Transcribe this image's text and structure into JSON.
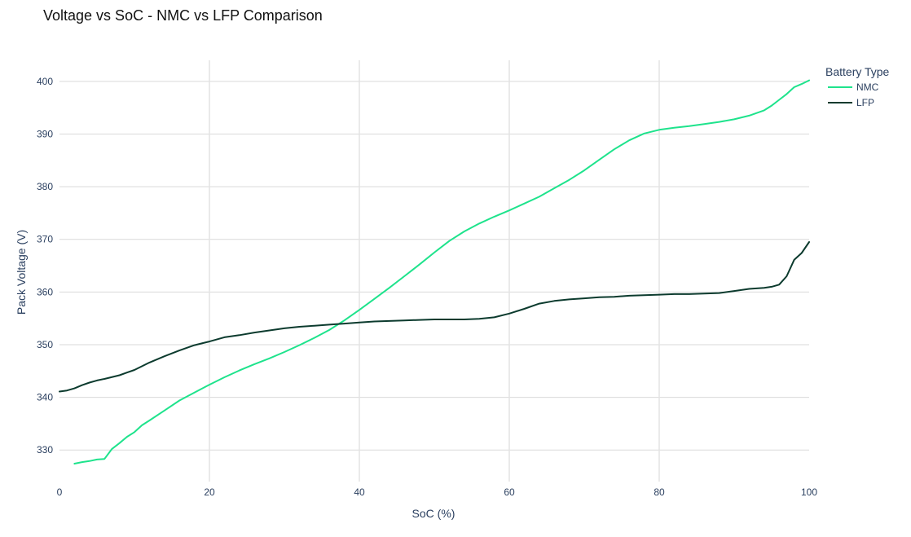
{
  "chart_data": {
    "type": "line",
    "title": "Voltage vs SoC - NMC vs LFP Comparison",
    "xlabel": "SoC (%)",
    "ylabel": "Pack Voltage (V)",
    "xlim": [
      0,
      100
    ],
    "ylim": [
      324,
      404
    ],
    "xticks": [
      0,
      20,
      40,
      60,
      80,
      100
    ],
    "yticks": [
      330,
      340,
      350,
      360,
      370,
      380,
      390,
      400
    ],
    "grid": true,
    "legend": {
      "title": "Battery Type",
      "placement": "top-right, outside plot"
    },
    "series": [
      {
        "name": "NMC",
        "color": "#1ee38c",
        "x": [
          2,
          3,
          4,
          5,
          6,
          7,
          8,
          9,
          10,
          11,
          12,
          14,
          16,
          18,
          20,
          22,
          24,
          26,
          28,
          30,
          32,
          34,
          36,
          38,
          40,
          42,
          44,
          46,
          48,
          50,
          52,
          54,
          56,
          58,
          60,
          62,
          64,
          66,
          68,
          70,
          72,
          74,
          76,
          78,
          80,
          82,
          84,
          86,
          88,
          90,
          92,
          94,
          95,
          96,
          97,
          98,
          99,
          100
        ],
        "y": [
          327.4,
          327.7,
          327.9,
          328.2,
          328.3,
          330.2,
          331.3,
          332.5,
          333.4,
          334.7,
          335.6,
          337.5,
          339.4,
          340.9,
          342.4,
          343.8,
          345.1,
          346.3,
          347.4,
          348.6,
          349.9,
          351.3,
          352.8,
          354.6,
          356.6,
          358.7,
          360.8,
          363.0,
          365.2,
          367.5,
          369.7,
          371.5,
          373.0,
          374.3,
          375.5,
          376.8,
          378.1,
          379.7,
          381.3,
          383.1,
          385.1,
          387.1,
          388.8,
          390.1,
          390.8,
          391.2,
          391.5,
          391.9,
          392.3,
          392.8,
          393.5,
          394.5,
          395.4,
          396.5,
          397.6,
          398.9,
          399.5,
          400.2
        ]
      },
      {
        "name": "LFP",
        "color": "#0c3b2e",
        "x": [
          0,
          1,
          2,
          3,
          4,
          5,
          6,
          8,
          9,
          10,
          12,
          14,
          16,
          18,
          20,
          22,
          24,
          26,
          28,
          30,
          32,
          34,
          36,
          38,
          40,
          42,
          44,
          46,
          48,
          50,
          52,
          54,
          56,
          58,
          60,
          62,
          64,
          66,
          68,
          70,
          72,
          74,
          76,
          78,
          80,
          82,
          84,
          86,
          88,
          90,
          92,
          94,
          95,
          96,
          97,
          98,
          99,
          100
        ],
        "y": [
          341.1,
          341.3,
          341.7,
          342.3,
          342.8,
          343.2,
          343.5,
          344.2,
          344.7,
          345.2,
          346.6,
          347.8,
          348.9,
          349.9,
          350.6,
          351.4,
          351.8,
          352.3,
          352.7,
          353.1,
          353.4,
          353.6,
          353.8,
          354.0,
          354.2,
          354.4,
          354.5,
          354.6,
          354.7,
          354.8,
          354.8,
          354.8,
          354.9,
          355.2,
          355.9,
          356.8,
          357.8,
          358.3,
          358.6,
          358.8,
          359.0,
          359.1,
          359.3,
          359.4,
          359.5,
          359.6,
          359.6,
          359.7,
          359.8,
          360.2,
          360.6,
          360.8,
          361.0,
          361.4,
          363.0,
          366.1,
          367.4,
          369.5
        ]
      }
    ]
  }
}
